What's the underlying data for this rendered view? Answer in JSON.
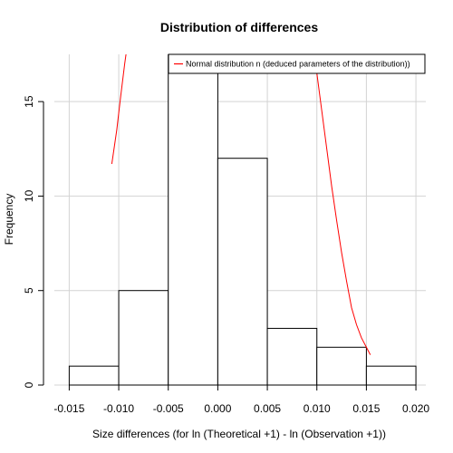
{
  "chart_data": {
    "type": "bar",
    "subtype": "histogram",
    "title": "Distribution of differences",
    "xlabel": "Size differences (for ln (Theoretical +1) - ln (Observation +1))",
    "ylabel": "Frequency",
    "xlim": [
      -0.0165,
      0.021
    ],
    "ylim": [
      0,
      17.5
    ],
    "grid": true,
    "x_ticks": [
      -0.015,
      -0.01,
      -0.005,
      0.0,
      0.005,
      0.01,
      0.015,
      0.02
    ],
    "x_tick_labels": [
      "-0.015",
      "-0.010",
      "-0.005",
      "0.000",
      "0.005",
      "0.010",
      "0.015",
      "0.020"
    ],
    "y_ticks": [
      0,
      5,
      10,
      15
    ],
    "y_tick_labels": [
      "0",
      "5",
      "10",
      "15"
    ],
    "bins": [
      {
        "x0": -0.015,
        "x1": -0.01,
        "count": 1
      },
      {
        "x0": -0.01,
        "x1": -0.005,
        "count": 5
      },
      {
        "x0": -0.005,
        "x1": 0.0,
        "count": 18
      },
      {
        "x0": 0.0,
        "x1": 0.005,
        "count": 12
      },
      {
        "x0": 0.005,
        "x1": 0.01,
        "count": 3
      },
      {
        "x0": 0.01,
        "x1": 0.015,
        "count": 2
      },
      {
        "x0": 0.015,
        "x1": 0.02,
        "count": 1
      }
    ],
    "normal_curve": {
      "name": "Normal distribution  n (deduced parameters of the distribution))",
      "color": "#ff0000",
      "x": [
        -0.0107,
        -0.0102,
        -0.0098,
        -0.0094,
        -0.009,
        0.0096,
        0.01,
        0.0105,
        0.011,
        0.0115,
        0.012,
        0.0125,
        0.013,
        0.0135,
        0.014,
        0.0145,
        0.015,
        0.0154
      ],
      "y": [
        11.7,
        13.5,
        15.3,
        17.0,
        18.5,
        18.0,
        16.5,
        14.5,
        12.5,
        10.5,
        8.7,
        7.0,
        5.5,
        4.1,
        3.2,
        2.5,
        2.0,
        1.6
      ]
    },
    "legend_position": "top-right"
  }
}
